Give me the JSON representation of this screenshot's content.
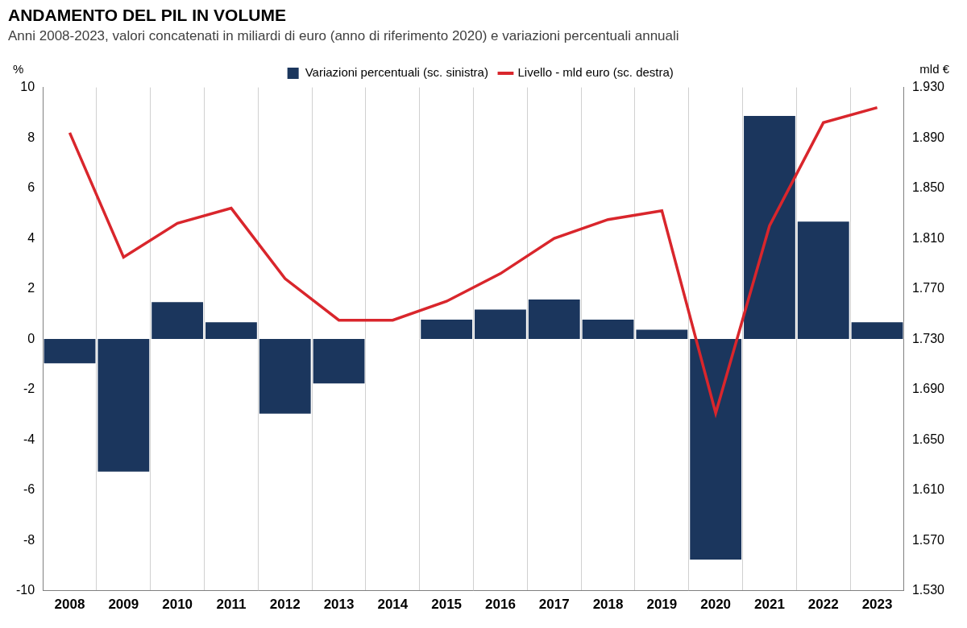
{
  "chart_data": {
    "type": "bar",
    "title": "ANDAMENTO DEL PIL IN VOLUME",
    "subtitle": "Anni 2008-2023, valori concatenati in miliardi di euro (anno di riferimento 2020) e variazioni percentuali annuali",
    "categories": [
      "2008",
      "2009",
      "2010",
      "2011",
      "2012",
      "2013",
      "2014",
      "2015",
      "2016",
      "2017",
      "2018",
      "2019",
      "2020",
      "2021",
      "2022",
      "2023"
    ],
    "series": [
      {
        "name": "Variazioni percentuali (sc. sinistra)",
        "type": "bar",
        "color": "#1b365d",
        "values": [
          -1.0,
          -5.3,
          1.5,
          0.7,
          -3.0,
          -1.8,
          0.0,
          0.8,
          1.2,
          1.6,
          0.8,
          0.4,
          -8.8,
          8.9,
          4.7,
          0.7
        ]
      },
      {
        "name": "Livello - mld euro (sc. destra)",
        "type": "line",
        "color": "#d9262c",
        "axis": "y2",
        "values": [
          1894,
          1795,
          1822,
          1834,
          1778,
          1745,
          1745,
          1760,
          1782,
          1810,
          1825,
          1832,
          1671,
          1820,
          1902,
          1914
        ]
      }
    ],
    "y_label": "%",
    "y2_label": "mld €",
    "ylim": [
      -10,
      10
    ],
    "yticks": [
      -10,
      -8,
      -6,
      -4,
      -2,
      0,
      2,
      4,
      6,
      8,
      10
    ],
    "y2lim": [
      1530,
      1930
    ],
    "y2ticks": [
      {
        "value": 1530,
        "label": "1.530"
      },
      {
        "value": 1570,
        "label": "1.570"
      },
      {
        "value": 1610,
        "label": "1.610"
      },
      {
        "value": 1650,
        "label": "1.650"
      },
      {
        "value": 1690,
        "label": "1.690"
      },
      {
        "value": 1730,
        "label": "1.730"
      },
      {
        "value": 1770,
        "label": "1.770"
      },
      {
        "value": 1810,
        "label": "1.810"
      },
      {
        "value": 1850,
        "label": "1.850"
      },
      {
        "value": 1890,
        "label": "1.890"
      },
      {
        "value": 1930,
        "label": "1.930"
      }
    ],
    "grid": "x",
    "legend": "top"
  }
}
